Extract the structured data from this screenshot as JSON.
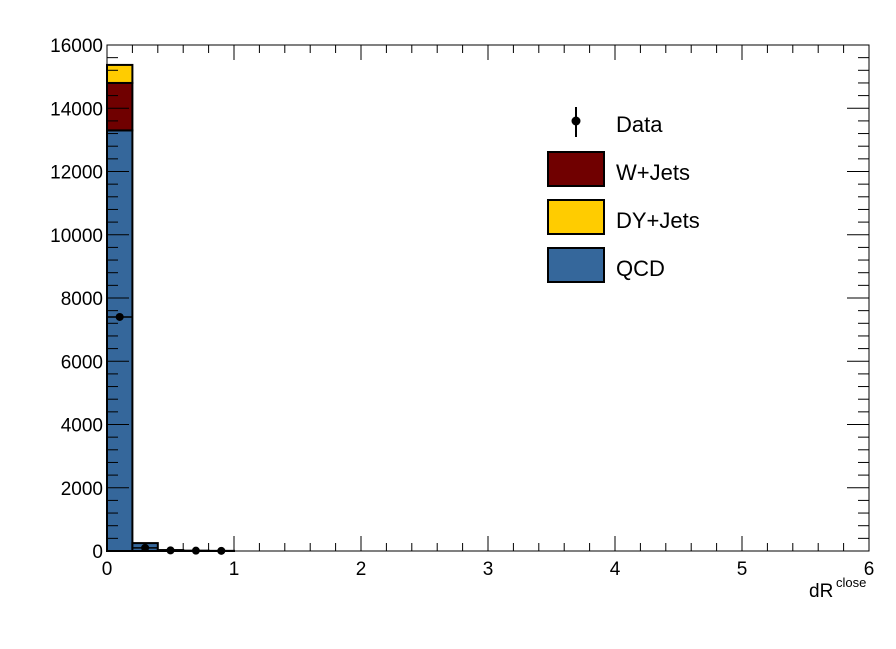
{
  "chart_data": {
    "type": "bar",
    "stacked": true,
    "xlabel": "dR",
    "xlabel_superscript": "close",
    "ylabel": "",
    "xlim": [
      0,
      6
    ],
    "ylim": [
      0,
      16000
    ],
    "x_ticks": [
      "0",
      "1",
      "2",
      "3",
      "4",
      "5",
      "6"
    ],
    "y_ticks": [
      "0",
      "2000",
      "4000",
      "6000",
      "8000",
      "10000",
      "12000",
      "14000",
      "16000"
    ],
    "grid": false,
    "legend_position": "top-right",
    "bin_edges": [
      0,
      0.2,
      0.4,
      0.6,
      0.8,
      1.0
    ],
    "series": [
      {
        "name": "QCD",
        "color": "#35679b",
        "values": [
          13300,
          250,
          30,
          10,
          5
        ]
      },
      {
        "name": "DY+Jets",
        "color": "#ffcc00",
        "values": [
          0,
          0,
          0,
          0,
          0
        ]
      },
      {
        "name": "W+Jets",
        "color": "#700000",
        "values": [
          1500,
          0,
          0,
          0,
          0
        ]
      },
      {
        "name": "DY+Jets top",
        "legend": false,
        "color": "#ffcc00",
        "values": [
          570,
          0,
          0,
          0,
          0
        ]
      }
    ],
    "data_points": {
      "name": "Data",
      "x": [
        0.1,
        0.3,
        0.5,
        0.7,
        0.9
      ],
      "y": [
        7400,
        100,
        20,
        10,
        5
      ]
    },
    "legend": [
      {
        "label": "Data",
        "kind": "marker"
      },
      {
        "label": "W+Jets",
        "kind": "box",
        "color": "#700000"
      },
      {
        "label": "DY+Jets",
        "kind": "box",
        "color": "#ffcc00"
      },
      {
        "label": "QCD",
        "kind": "box",
        "color": "#35679b"
      }
    ]
  }
}
